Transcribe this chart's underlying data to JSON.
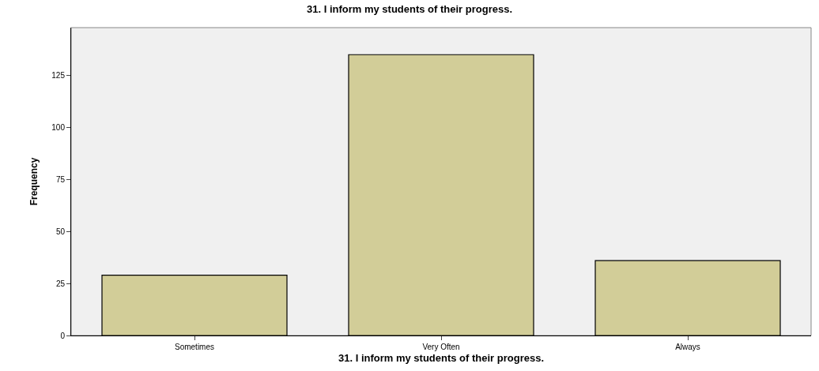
{
  "chart_data": {
    "type": "bar",
    "title": "31. I inform my students of their progress.",
    "xlabel": "31. I inform my students of their progress.",
    "ylabel": "Frequency",
    "categories": [
      "Sometimes",
      "Very Often",
      "Always"
    ],
    "values": [
      29,
      135,
      36
    ],
    "color": "#d2cd98",
    "ylim": [
      0,
      148
    ],
    "yticks": [
      0,
      25,
      50,
      75,
      100,
      125
    ],
    "grid": false,
    "legend": false
  }
}
